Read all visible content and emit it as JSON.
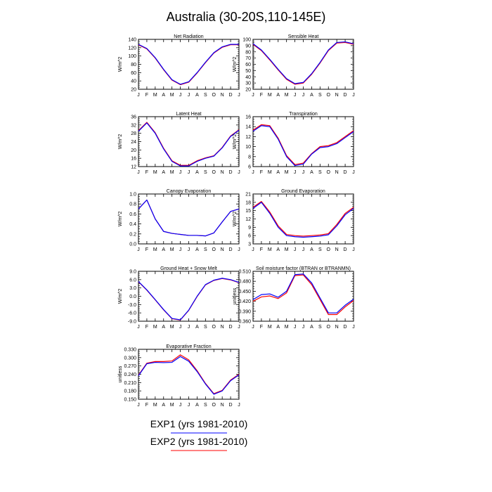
{
  "figure": {
    "title": "Australia (30-20S,110-145E)",
    "legend": [
      {
        "label": "EXP1 (yrs 1981-2010)",
        "color": "#0000ff"
      },
      {
        "label": "EXP2 (yrs 1981-2010)",
        "color": "#ff0000"
      }
    ],
    "month_labels": [
      "J",
      "F",
      "M",
      "A",
      "M",
      "J",
      "J",
      "A",
      "S",
      "O",
      "N",
      "D",
      "J"
    ]
  },
  "chart_data": [
    {
      "type": "line",
      "title": "Net Radiation",
      "ylabel": "W/m^2",
      "ylim": [
        20,
        140
      ],
      "yticks": [
        "20",
        "40",
        "60",
        "80",
        "100",
        "120",
        "140"
      ],
      "ytick_values": [
        20,
        40,
        60,
        80,
        100,
        120,
        140
      ],
      "x": [
        "J",
        "F",
        "M",
        "A",
        "M",
        "J",
        "J",
        "A",
        "S",
        "O",
        "N",
        "D",
        "J"
      ],
      "series": [
        {
          "name": "EXP1 (yrs 1981-2010)",
          "color": "#0000ff",
          "values": [
            128,
            118,
            96,
            68,
            43,
            32,
            38,
            60,
            85,
            108,
            122,
            128,
            128
          ]
        },
        {
          "name": "EXP2 (yrs 1981-2010)",
          "color": "#ff0000",
          "values": [
            127,
            117,
            95,
            67,
            42,
            31,
            37,
            59,
            84,
            107,
            121,
            127,
            127
          ]
        }
      ]
    },
    {
      "type": "line",
      "title": "Sensible Heat",
      "ylabel": "W/m^2",
      "ylim": [
        20,
        100
      ],
      "yticks": [
        "20",
        "30",
        "40",
        "50",
        "60",
        "70",
        "80",
        "90",
        "100"
      ],
      "ytick_values": [
        20,
        30,
        40,
        50,
        60,
        70,
        80,
        90,
        100
      ],
      "x": [
        "J",
        "F",
        "M",
        "A",
        "M",
        "J",
        "J",
        "A",
        "S",
        "O",
        "N",
        "D",
        "J"
      ],
      "series": [
        {
          "name": "EXP1 (yrs 1981-2010)",
          "color": "#0000ff",
          "values": [
            93,
            83,
            68,
            52,
            37,
            29,
            31,
            45,
            63,
            83,
            95,
            96,
            93
          ]
        },
        {
          "name": "EXP2 (yrs 1981-2010)",
          "color": "#ff0000",
          "values": [
            92,
            82,
            67,
            51,
            36,
            28,
            30,
            44,
            62,
            82,
            94,
            95,
            92
          ]
        }
      ]
    },
    {
      "type": "line",
      "title": "Latent Heat",
      "ylabel": "W/m^2",
      "ylim": [
        12,
        36
      ],
      "yticks": [
        "12",
        "16",
        "20",
        "24",
        "28",
        "32",
        "36"
      ],
      "ytick_values": [
        12,
        16,
        20,
        24,
        28,
        32,
        36
      ],
      "x": [
        "J",
        "F",
        "M",
        "A",
        "M",
        "J",
        "J",
        "A",
        "S",
        "O",
        "N",
        "D",
        "J"
      ],
      "series": [
        {
          "name": "EXP1 (yrs 1981-2010)",
          "color": "#0000ff",
          "values": [
            29,
            33,
            28,
            20.5,
            14.5,
            12.3,
            12.3,
            14.5,
            16,
            17,
            21,
            26.5,
            29.5
          ]
        },
        {
          "name": "EXP2 (yrs 1981-2010)",
          "color": "#ff0000",
          "values": [
            29.3,
            33.3,
            28.3,
            20.8,
            14.8,
            12.6,
            12.6,
            14.8,
            16.2,
            17.2,
            21.2,
            26.7,
            29.7
          ]
        }
      ]
    },
    {
      "type": "line",
      "title": "Transpiration",
      "ylabel": "W/m^2",
      "ylim": [
        6,
        16
      ],
      "yticks": [
        "6",
        "8",
        "10",
        "12",
        "14",
        "16"
      ],
      "ytick_values": [
        6,
        8,
        10,
        12,
        14,
        16
      ],
      "x": [
        "J",
        "F",
        "M",
        "A",
        "M",
        "J",
        "J",
        "A",
        "S",
        "O",
        "N",
        "D",
        "J"
      ],
      "series": [
        {
          "name": "EXP1 (yrs 1981-2010)",
          "color": "#0000ff",
          "values": [
            13.1,
            14.2,
            14,
            11.5,
            8,
            6.2,
            6.5,
            8.5,
            9.8,
            10,
            10.6,
            11.8,
            13
          ]
        },
        {
          "name": "EXP2 (yrs 1981-2010)",
          "color": "#ff0000",
          "values": [
            13.3,
            14.4,
            14.2,
            11.7,
            8.2,
            6.4,
            6.7,
            8.6,
            10,
            10.2,
            10.8,
            12,
            13.2
          ]
        }
      ]
    },
    {
      "type": "line",
      "title": "Canopy Evaporation",
      "ylabel": "W/m^2",
      "ylim": [
        0.0,
        1.0
      ],
      "yticks": [
        "0.0",
        "0.2",
        "0.4",
        "0.6",
        "0.8",
        "1.0"
      ],
      "ytick_values": [
        0,
        0.2,
        0.4,
        0.6,
        0.8,
        1.0
      ],
      "x": [
        "J",
        "F",
        "M",
        "A",
        "M",
        "J",
        "J",
        "A",
        "S",
        "O",
        "N",
        "D",
        "J"
      ],
      "series": [
        {
          "name": "EXP1 (yrs 1981-2010)",
          "color": "#0000ff",
          "values": [
            0.7,
            0.88,
            0.5,
            0.25,
            0.21,
            0.19,
            0.17,
            0.17,
            0.16,
            0.22,
            0.44,
            0.65,
            0.7
          ]
        },
        {
          "name": "EXP2 (yrs 1981-2010)",
          "color": "#ff0000",
          "values": [
            0.7,
            0.88,
            0.5,
            0.25,
            0.21,
            0.19,
            0.17,
            0.17,
            0.16,
            0.22,
            0.44,
            0.65,
            0.7
          ]
        }
      ]
    },
    {
      "type": "line",
      "title": "Ground Evaporation",
      "ylabel": "W/m^2",
      "ylim": [
        3,
        21
      ],
      "yticks": [
        "3",
        "6",
        "9",
        "12",
        "15",
        "18",
        "21"
      ],
      "ytick_values": [
        3,
        6,
        9,
        12,
        15,
        18,
        21
      ],
      "x": [
        "J",
        "F",
        "M",
        "A",
        "M",
        "J",
        "J",
        "A",
        "S",
        "O",
        "N",
        "D",
        "J"
      ],
      "series": [
        {
          "name": "EXP1 (yrs 1981-2010)",
          "color": "#0000ff",
          "values": [
            15.8,
            18,
            14,
            9,
            6,
            5.6,
            5.4,
            5.6,
            5.8,
            6.3,
            9.5,
            13.5,
            15.8
          ]
        },
        {
          "name": "EXP2 (yrs 1981-2010)",
          "color": "#ff0000",
          "values": [
            16.2,
            18.3,
            14.5,
            9.5,
            6.4,
            6,
            5.8,
            6,
            6.2,
            6.7,
            10,
            14,
            16.2
          ]
        }
      ]
    },
    {
      "type": "line",
      "title": "Ground Heat + Snow Melt",
      "ylabel": "W/m^2",
      "ylim": [
        -9,
        9
      ],
      "yticks": [
        "-9.0",
        "-6.0",
        "-3.0",
        "0.0",
        "3.0",
        "6.0",
        "9.0"
      ],
      "ytick_values": [
        -9,
        -6,
        -3,
        0,
        3,
        6,
        9
      ],
      "x": [
        "J",
        "F",
        "M",
        "A",
        "M",
        "J",
        "J",
        "A",
        "S",
        "O",
        "N",
        "D",
        "J"
      ],
      "series": [
        {
          "name": "EXP1 (yrs 1981-2010)",
          "color": "#0000ff",
          "values": [
            5.3,
            2.3,
            -1.2,
            -4.8,
            -8,
            -8.5,
            -5,
            0,
            4.2,
            5.8,
            6.5,
            6,
            5
          ]
        },
        {
          "name": "EXP2 (yrs 1981-2010)",
          "color": "#ff0000",
          "values": [
            5.2,
            2.2,
            -1.3,
            -4.9,
            -8.1,
            -8.6,
            -5.1,
            -0.1,
            4.1,
            5.7,
            6.4,
            5.9,
            4.9
          ]
        }
      ]
    },
    {
      "type": "line",
      "title": "Soil moisture factor (BTRAN or BTRANMN)",
      "ylabel": "unitless",
      "ylim": [
        0.36,
        0.51
      ],
      "yticks": [
        "0.360",
        "0.390",
        "0.420",
        "0.450",
        "0.480",
        "0.510"
      ],
      "ytick_values": [
        0.36,
        0.39,
        0.42,
        0.45,
        0.48,
        0.51
      ],
      "x": [
        "J",
        "F",
        "M",
        "A",
        "M",
        "J",
        "J",
        "A",
        "S",
        "O",
        "N",
        "D",
        "J"
      ],
      "series": [
        {
          "name": "EXP1 (yrs 1981-2010)",
          "color": "#0000ff",
          "values": [
            0.425,
            0.44,
            0.442,
            0.432,
            0.45,
            0.5,
            0.502,
            0.475,
            0.43,
            0.385,
            0.385,
            0.408,
            0.426
          ]
        },
        {
          "name": "EXP2 (yrs 1981-2010)",
          "color": "#ff0000",
          "values": [
            0.42,
            0.433,
            0.436,
            0.428,
            0.445,
            0.497,
            0.499,
            0.47,
            0.425,
            0.38,
            0.38,
            0.403,
            0.422
          ]
        }
      ]
    },
    {
      "type": "line",
      "title": "Evaporative Fraction",
      "ylabel": "unitless",
      "ylim": [
        0.15,
        0.33
      ],
      "yticks": [
        "0.150",
        "0.180",
        "0.210",
        "0.240",
        "0.270",
        "0.300",
        "0.330"
      ],
      "ytick_values": [
        0.15,
        0.18,
        0.21,
        0.24,
        0.27,
        0.3,
        0.33
      ],
      "x": [
        "J",
        "F",
        "M",
        "A",
        "M",
        "J",
        "J",
        "A",
        "S",
        "O",
        "N",
        "D",
        "J"
      ],
      "series": [
        {
          "name": "EXP1 (yrs 1981-2010)",
          "color": "#0000ff",
          "values": [
            0.235,
            0.278,
            0.283,
            0.282,
            0.283,
            0.304,
            0.287,
            0.25,
            0.205,
            0.168,
            0.18,
            0.217,
            0.238
          ]
        },
        {
          "name": "EXP2 (yrs 1981-2010)",
          "color": "#ff0000",
          "values": [
            0.237,
            0.28,
            0.286,
            0.286,
            0.288,
            0.31,
            0.292,
            0.253,
            0.207,
            0.17,
            0.182,
            0.219,
            0.24
          ]
        }
      ]
    }
  ]
}
